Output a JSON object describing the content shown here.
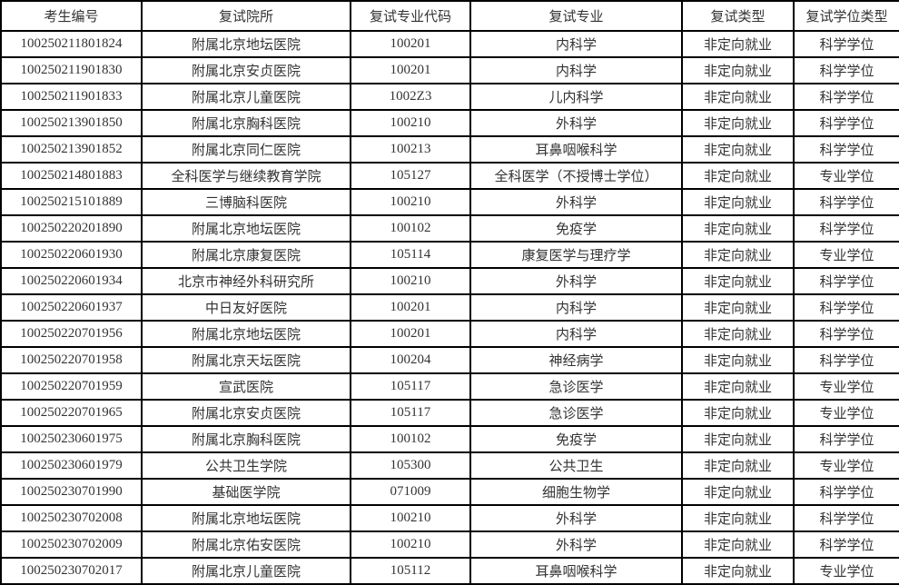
{
  "colors": {
    "border": "#000000",
    "text": "#333333",
    "background": "#ffffff"
  },
  "table": {
    "columns": [
      "考生编号",
      "复试院所",
      "复试专业代码",
      "复试专业",
      "复试类型",
      "复试学位类型"
    ],
    "rows": [
      [
        "100250211801824",
        "附属北京地坛医院",
        "100201",
        "内科学",
        "非定向就业",
        "科学学位"
      ],
      [
        "100250211901830",
        "附属北京安贞医院",
        "100201",
        "内科学",
        "非定向就业",
        "科学学位"
      ],
      [
        "100250211901833",
        "附属北京儿童医院",
        "1002Z3",
        "儿内科学",
        "非定向就业",
        "科学学位"
      ],
      [
        "100250213901850",
        "附属北京胸科医院",
        "100210",
        "外科学",
        "非定向就业",
        "科学学位"
      ],
      [
        "100250213901852",
        "附属北京同仁医院",
        "100213",
        "耳鼻咽喉科学",
        "非定向就业",
        "科学学位"
      ],
      [
        "100250214801883",
        "全科医学与继续教育学院",
        "105127",
        "全科医学（不授博士学位）",
        "非定向就业",
        "专业学位"
      ],
      [
        "100250215101889",
        "三博脑科医院",
        "100210",
        "外科学",
        "非定向就业",
        "科学学位"
      ],
      [
        "100250220201890",
        "附属北京地坛医院",
        "100102",
        "免疫学",
        "非定向就业",
        "科学学位"
      ],
      [
        "100250220601930",
        "附属北京康复医院",
        "105114",
        "康复医学与理疗学",
        "非定向就业",
        "专业学位"
      ],
      [
        "100250220601934",
        "北京市神经外科研究所",
        "100210",
        "外科学",
        "非定向就业",
        "科学学位"
      ],
      [
        "100250220601937",
        "中日友好医院",
        "100201",
        "内科学",
        "非定向就业",
        "科学学位"
      ],
      [
        "100250220701956",
        "附属北京地坛医院",
        "100201",
        "内科学",
        "非定向就业",
        "科学学位"
      ],
      [
        "100250220701958",
        "附属北京天坛医院",
        "100204",
        "神经病学",
        "非定向就业",
        "科学学位"
      ],
      [
        "100250220701959",
        "宣武医院",
        "105117",
        "急诊医学",
        "非定向就业",
        "专业学位"
      ],
      [
        "100250220701965",
        "附属北京安贞医院",
        "105117",
        "急诊医学",
        "非定向就业",
        "专业学位"
      ],
      [
        "100250230601975",
        "附属北京胸科医院",
        "100102",
        "免疫学",
        "非定向就业",
        "科学学位"
      ],
      [
        "100250230601979",
        "公共卫生学院",
        "105300",
        "公共卫生",
        "非定向就业",
        "专业学位"
      ],
      [
        "100250230701990",
        "基础医学院",
        "071009",
        "细胞生物学",
        "非定向就业",
        "科学学位"
      ],
      [
        "100250230702008",
        "附属北京地坛医院",
        "100210",
        "外科学",
        "非定向就业",
        "科学学位"
      ],
      [
        "100250230702009",
        "附属北京佑安医院",
        "100210",
        "外科学",
        "非定向就业",
        "科学学位"
      ],
      [
        "100250230702017",
        "附属北京儿童医院",
        "105112",
        "耳鼻咽喉科学",
        "非定向就业",
        "专业学位"
      ]
    ],
    "cell_names": [
      "cell-candidate-id",
      "cell-institution",
      "cell-major-code",
      "cell-major",
      "cell-enrollment-type",
      "cell-degree-type"
    ]
  }
}
